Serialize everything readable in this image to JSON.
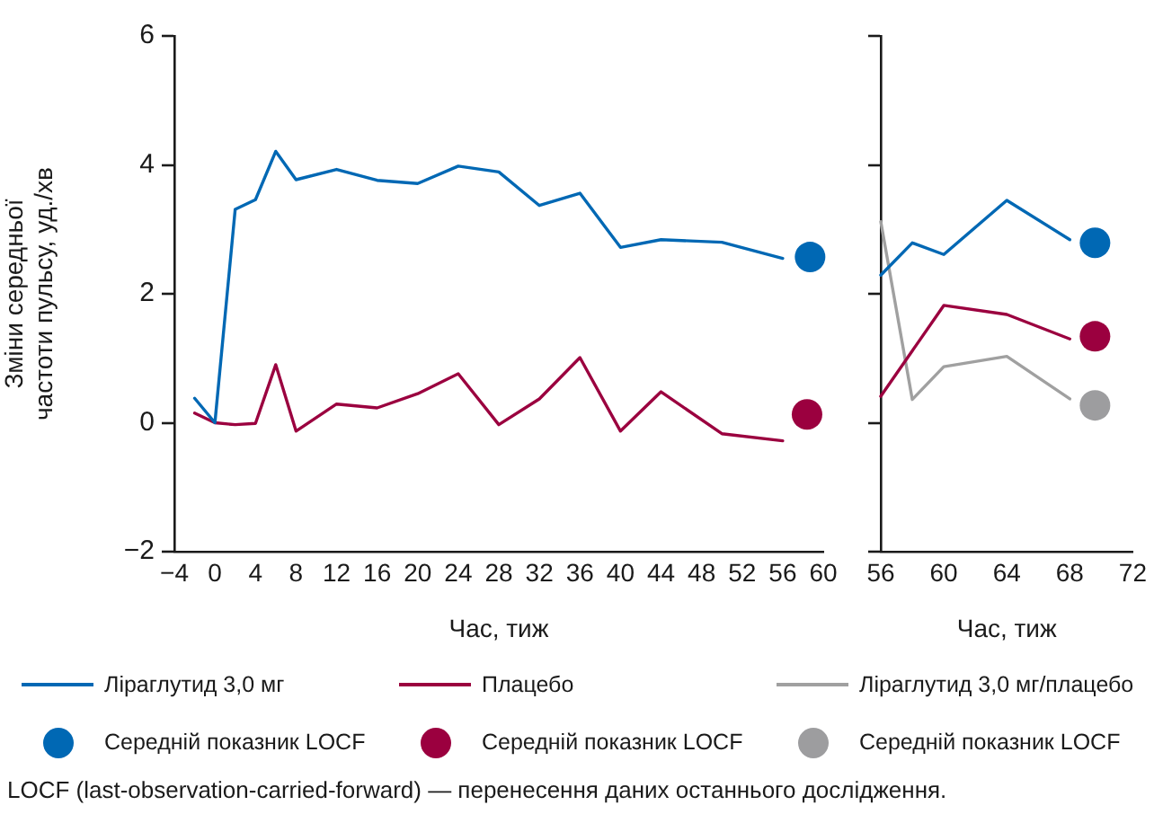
{
  "chart_data": [
    {
      "type": "line",
      "xlabel": "Час, тиж",
      "ylabel": "Зміни середньої частоти пульсу, уд./хв",
      "x": [
        -2,
        0,
        2,
        4,
        6,
        8,
        12,
        16,
        20,
        24,
        28,
        32,
        36,
        40,
        44,
        50,
        56
      ],
      "series": [
        {
          "color": "#0068b4",
          "values": [
            0.38,
            0,
            3.31,
            3.46,
            4.21,
            3.77,
            3.93,
            3.76,
            3.71,
            3.98,
            3.89,
            3.37,
            3.56,
            2.72,
            2.84,
            2.8,
            2.55
          ]
        },
        {
          "color": "#9b003f",
          "values": [
            0.15,
            0,
            -0.03,
            -0.01,
            0.9,
            -0.13,
            0.29,
            0.23,
            0.45,
            0.76,
            -0.03,
            0.37,
            1.01,
            -0.13,
            0.48,
            -0.17,
            -0.28
          ]
        },
        {
          "type": "scatter",
          "marker": "circle",
          "color": "#0068b4",
          "x": [
            58.7
          ],
          "values": [
            2.57
          ]
        },
        {
          "type": "scatter",
          "marker": "circle",
          "color": "#9b003f",
          "x": [
            58.4
          ],
          "values": [
            0.13
          ]
        }
      ],
      "xlim": [
        -4,
        60
      ],
      "xticks": [
        {
          "value": -4,
          "label": "−4"
        },
        0,
        4,
        8,
        12,
        16,
        20,
        24,
        28,
        32,
        36,
        40,
        44,
        48,
        52,
        56,
        60
      ],
      "ylim": [
        -2,
        6
      ],
      "yticks": [
        {
          "value": -2,
          "label": "−2"
        },
        0,
        2,
        4,
        6
      ],
      "grid": false,
      "marker": "none",
      "line_style": "solid",
      "annotations": [
        "LOCF (last-observation-carried-forward) — перенесення даних останнього дослідження."
      ]
    },
    {
      "type": "line",
      "xlabel": "Час, тиж",
      "x": [
        56,
        58,
        60,
        64,
        68
      ],
      "series": [
        {
          "name": "Ліраглутид 3,0 мг",
          "color": "#0068b4",
          "values": [
            2.29,
            2.79,
            2.61,
            3.45,
            2.84
          ]
        },
        {
          "name": "Плацебо",
          "color": "#9b003f",
          "x": [
            56,
            60,
            64,
            68
          ],
          "values": [
            0.41,
            1.82,
            1.68,
            1.3
          ]
        },
        {
          "name": "Ліраглутид 3,0 мг/плацебо",
          "color": "#a0a0a0",
          "values": [
            3.12,
            0.36,
            0.87,
            1.03,
            0.37
          ]
        },
        {
          "name": "Середній показник LOCF",
          "type": "scatter",
          "marker": "circle",
          "color": "#0068b4",
          "x": [
            69.6
          ],
          "values": [
            2.79
          ]
        },
        {
          "name": "Середній показник LOCF",
          "type": "scatter",
          "marker": "circle",
          "color": "#9b003f",
          "x": [
            69.6
          ],
          "values": [
            1.34
          ]
        },
        {
          "name": "Середній показник LOCF",
          "type": "scatter",
          "marker": "circle",
          "color": "#9d9d9f",
          "x": [
            69.6
          ],
          "values": [
            0.27
          ]
        }
      ],
      "xlim": [
        56,
        72
      ],
      "xticks": [
        56,
        60,
        64,
        68,
        72
      ],
      "ylim": [
        -2,
        6
      ],
      "yticks": [
        -2,
        0,
        2,
        4,
        6
      ],
      "tick_labels": "x",
      "grid": false,
      "marker": "none",
      "line_style": "solid",
      "legend": "bottom"
    }
  ]
}
